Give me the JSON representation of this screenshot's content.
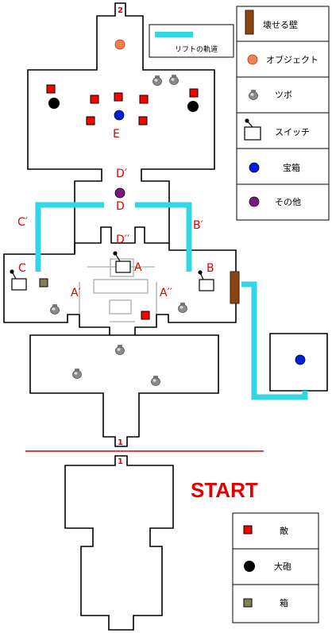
{
  "map": {
    "door_numbers": {
      "top": "2",
      "mid": "1",
      "lower": "1"
    },
    "labels": {
      "e": "E",
      "d_prime": "D′",
      "d": "D",
      "d_double": "D′′",
      "c_prime": "C′",
      "b_prime": "B′",
      "a": "A",
      "b": "B",
      "c": "C",
      "a_prime": "A′",
      "a_double": "A′′"
    },
    "start_text": "START"
  },
  "legend_main": {
    "items": [
      {
        "label": "壊せる壁",
        "icon": "breakable-wall-icon",
        "color": "#8b4513"
      },
      {
        "label": "オブジェクト",
        "icon": "object-icon",
        "color": "#f08050"
      },
      {
        "label": "ツボ",
        "icon": "pot-icon",
        "color": "#9a9a9a"
      },
      {
        "label": "スイッチ",
        "icon": "switch-icon",
        "color": "#000000"
      },
      {
        "label": "宝箱",
        "icon": "treasure-icon",
        "color": "#0020e0"
      },
      {
        "label": "その他",
        "icon": "other-icon",
        "color": "#7a1a80"
      }
    ]
  },
  "legend_lift": {
    "label": "リフトの軌道",
    "color": "#33d6e6"
  },
  "legend_lower": {
    "items": [
      {
        "label": "敵",
        "icon": "enemy-icon",
        "color": "#ff0000"
      },
      {
        "label": "大砲",
        "icon": "cannon-icon",
        "color": "#000000"
      },
      {
        "label": "箱",
        "icon": "box-icon",
        "color": "#808050"
      }
    ]
  }
}
